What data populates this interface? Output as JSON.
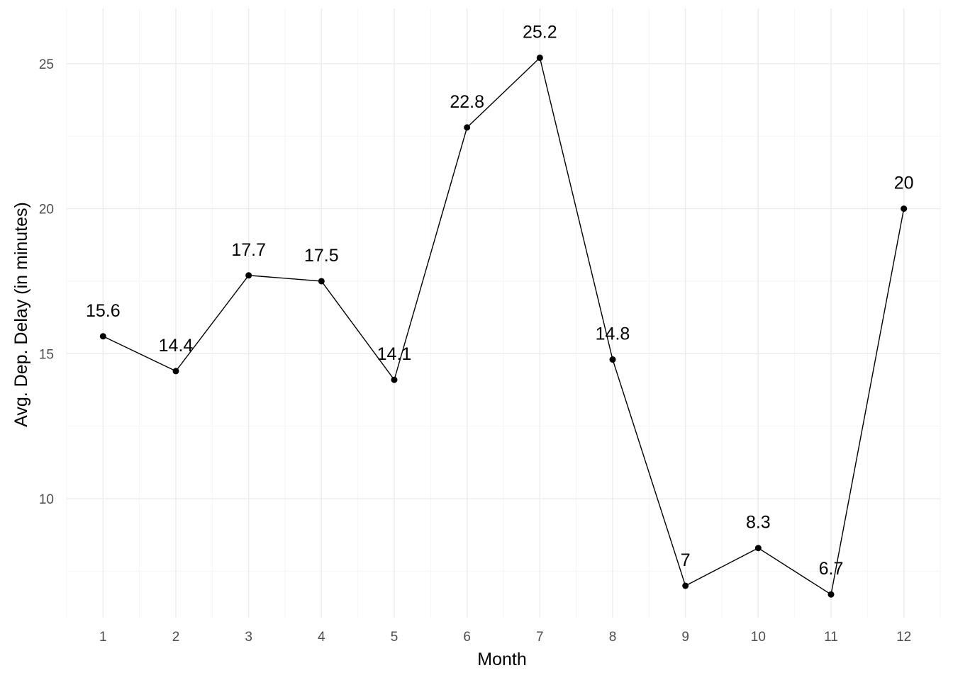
{
  "chart_data": {
    "type": "line",
    "x": [
      1,
      2,
      3,
      4,
      5,
      6,
      7,
      8,
      9,
      10,
      11,
      12
    ],
    "series": [
      {
        "values": [
          15.6,
          14.4,
          17.7,
          17.5,
          14.1,
          22.8,
          25.2,
          14.8,
          7,
          8.3,
          6.7,
          20
        ]
      }
    ],
    "data_labels": [
      "15.6",
      "14.4",
      "17.7",
      "17.5",
      "14.1",
      "22.8",
      "25.2",
      "14.8",
      "7",
      "8.3",
      "6.7",
      "20"
    ],
    "xlabel": "Month",
    "ylabel": "Avg. Dep. Delay (in minutes)",
    "x_ticks": [
      "1",
      "2",
      "3",
      "4",
      "5",
      "6",
      "7",
      "8",
      "9",
      "10",
      "11",
      "12"
    ],
    "y_ticks": [
      "10",
      "15",
      "20",
      "25"
    ],
    "xlim": [
      0.5,
      12.5
    ],
    "ylim": [
      5.9,
      26.9
    ],
    "grid": true,
    "legend": "none",
    "colors": {
      "line": "#000000",
      "grid_major": "#ebebeb",
      "grid_minor": "#f3f3f3",
      "tick_text": "#4d4d4d"
    }
  }
}
